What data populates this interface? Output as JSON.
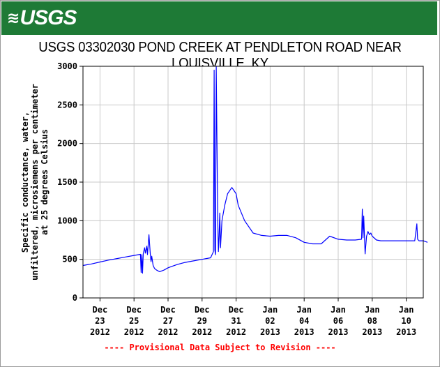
{
  "header": {
    "logo_text": "USGS",
    "title": "USGS 03302030 POND CREEK AT PENDLETON ROAD NEAR LOUISVILLE, KY"
  },
  "footnote": "---- Provisional Data Subject to Revision ----",
  "colors": {
    "banner": "#1e7a36",
    "series_line": "#0000ff",
    "footnote": "#ff0000",
    "grid": "#c8c8c8"
  },
  "chart_data": {
    "type": "line",
    "title": "USGS 03302030 POND CREEK AT PENDLETON ROAD NEAR LOUISVILLE, KY",
    "xlabel": "",
    "ylabel_lines": [
      "Specific conductance, water,",
      "unfiltered, microsiemens per centimeter",
      "at 25 degrees Celsius"
    ],
    "ylim": [
      0,
      3000
    ],
    "yticks": [
      0,
      500,
      1000,
      1500,
      2000,
      2500,
      3000
    ],
    "xlim": [
      "2012-12-22",
      "2013-01-11"
    ],
    "xticks": [
      {
        "date": "2012-12-23",
        "line1": "Dec",
        "line2": "23",
        "line3": "2012"
      },
      {
        "date": "2012-12-25",
        "line1": "Dec",
        "line2": "25",
        "line3": "2012"
      },
      {
        "date": "2012-12-27",
        "line1": "Dec",
        "line2": "27",
        "line3": "2012"
      },
      {
        "date": "2012-12-29",
        "line1": "Dec",
        "line2": "29",
        "line3": "2012"
      },
      {
        "date": "2012-12-31",
        "line1": "Dec",
        "line2": "31",
        "line3": "2012"
      },
      {
        "date": "2013-01-02",
        "line1": "Jan",
        "line2": "02",
        "line3": "2013"
      },
      {
        "date": "2013-01-04",
        "line1": "Jan",
        "line2": "04",
        "line3": "2013"
      },
      {
        "date": "2013-01-06",
        "line1": "Jan",
        "line2": "06",
        "line3": "2013"
      },
      {
        "date": "2013-01-08",
        "line1": "Jan",
        "line2": "08",
        "line3": "2013"
      },
      {
        "date": "2013-01-10",
        "line1": "Jan",
        "line2": "10",
        "line3": "2013"
      }
    ],
    "grid": true,
    "series": [
      {
        "x": [
          "2012-12-22T00:00",
          "2012-12-22T12:00",
          "2012-12-23T00:00",
          "2012-12-23T12:00",
          "2012-12-24T00:00",
          "2012-12-24T12:00",
          "2012-12-25T00:00",
          "2012-12-25T09:00",
          "2012-12-25T10:00",
          "2012-12-25T11:00",
          "2012-12-25T12:00",
          "2012-12-25T13:00",
          "2012-12-25T15:00",
          "2012-12-25T16:00",
          "2012-12-25T18:00",
          "2012-12-25T19:00",
          "2012-12-25T21:00",
          "2012-12-25T23:00",
          "2012-12-26T00:00",
          "2012-12-26T01:00",
          "2012-12-26T03:00",
          "2012-12-26T05:00",
          "2012-12-26T08:00",
          "2012-12-26T12:00",
          "2012-12-26T18:00",
          "2012-12-27T00:00",
          "2012-12-27T06:00",
          "2012-12-27T12:00",
          "2012-12-28T00:00",
          "2012-12-28T12:00",
          "2012-12-29T00:00",
          "2012-12-29T12:00",
          "2012-12-29T16:00",
          "2012-12-29T17:00",
          "2012-12-29T18:00",
          "2012-12-29T19:00",
          "2012-12-29T20:00",
          "2012-12-29T22:00",
          "2012-12-29T23:00",
          "2012-12-30T00:00",
          "2012-12-30T01:00",
          "2012-12-30T02:00",
          "2012-12-30T04:00",
          "2012-12-30T08:00",
          "2012-12-30T12:00",
          "2012-12-30T18:00",
          "2012-12-31T00:00",
          "2012-12-31T03:00",
          "2012-12-31T12:00",
          "2013-01-01T00:00",
          "2013-01-01T12:00",
          "2013-01-02T00:00",
          "2013-01-02T12:00",
          "2013-01-03T00:00",
          "2013-01-03T12:00",
          "2013-01-04T00:00",
          "2013-01-04T12:00",
          "2013-01-05T00:00",
          "2013-01-05T12:00",
          "2013-01-06T00:00",
          "2013-01-06T12:00",
          "2013-01-07T00:00",
          "2013-01-07T09:00",
          "2013-01-07T10:00",
          "2013-01-07T11:00",
          "2013-01-07T12:00",
          "2013-01-07T14:00",
          "2013-01-07T16:00",
          "2013-01-07T18:00",
          "2013-01-07T20:00",
          "2013-01-07T22:00",
          "2013-01-08T00:00",
          "2013-01-08T06:00",
          "2013-01-08T12:00",
          "2013-01-08T18:00",
          "2013-01-09T00:00",
          "2013-01-09T12:00",
          "2013-01-10T00:00",
          "2013-01-10T12:00",
          "2013-01-10T15:00",
          "2013-01-10T16:00",
          "2013-01-10T18:00",
          "2013-01-11T00:00",
          "2013-01-11T06:00"
        ],
        "y": [
          420,
          440,
          465,
          490,
          510,
          530,
          550,
          565,
          330,
          560,
          320,
          570,
          650,
          580,
          670,
          560,
          820,
          560,
          470,
          540,
          420,
          380,
          360,
          340,
          360,
          390,
          410,
          430,
          460,
          480,
          500,
          520,
          600,
          2950,
          620,
          560,
          3000,
          1050,
          600,
          800,
          1100,
          650,
          1000,
          1200,
          1350,
          1430,
          1350,
          1200,
          1000,
          840,
          810,
          800,
          810,
          810,
          780,
          720,
          700,
          700,
          800,
          760,
          750,
          750,
          760,
          1150,
          780,
          1060,
          570,
          800,
          860,
          820,
          840,
          800,
          750,
          740,
          740,
          740,
          740,
          740,
          740,
          960,
          760,
          740,
          740,
          720
        ]
      }
    ]
  }
}
